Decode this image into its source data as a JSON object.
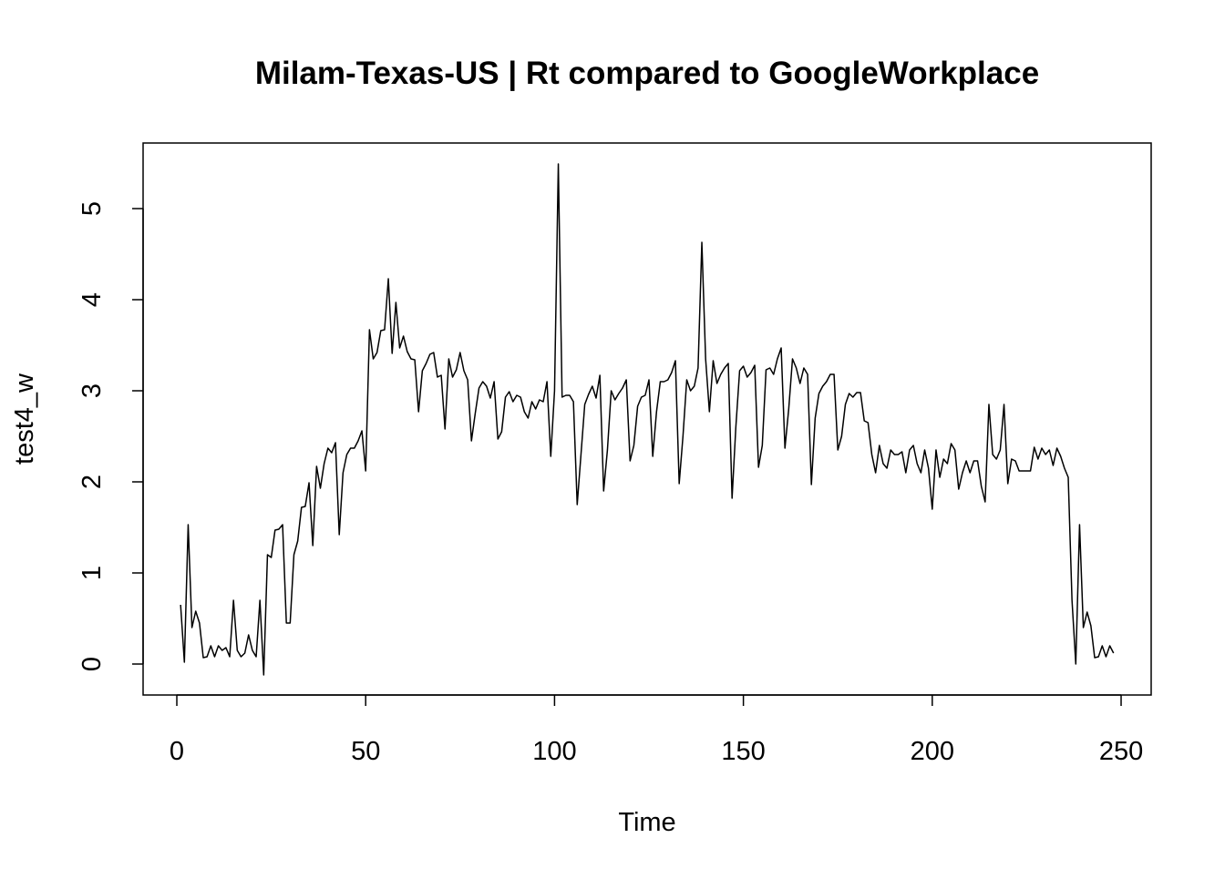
{
  "chart_data": {
    "type": "line",
    "title": "Milam-Texas-US | Rt compared to GoogleWorkplace",
    "x_label": "Time",
    "y_label": "test4_w",
    "x": [
      1,
      2,
      3,
      4,
      5,
      6,
      7,
      8,
      9,
      10,
      11,
      12,
      13,
      14,
      15,
      16,
      17,
      18,
      19,
      20,
      21,
      22,
      23,
      24,
      25,
      26,
      27,
      28,
      29,
      30,
      31,
      32,
      33,
      34,
      35,
      36,
      37,
      38,
      39,
      40,
      41,
      42,
      43,
      44,
      45,
      46,
      47,
      48,
      49,
      50,
      51,
      52,
      53,
      54,
      55,
      56,
      57,
      58,
      59,
      60,
      61,
      62,
      63,
      64,
      65,
      66,
      67,
      68,
      69,
      70,
      71,
      72,
      73,
      74,
      75,
      76,
      77,
      78,
      79,
      80,
      81,
      82,
      83,
      84,
      85,
      86,
      87,
      88,
      89,
      90,
      91,
      92,
      93,
      94,
      95,
      96,
      97,
      98,
      99,
      100,
      101,
      102,
      103,
      104,
      105,
      106,
      107,
      108,
      109,
      110,
      111,
      112,
      113,
      114,
      115,
      116,
      117,
      118,
      119,
      120,
      121,
      122,
      123,
      124,
      125,
      126,
      127,
      128,
      129,
      130,
      131,
      132,
      133,
      134,
      135,
      136,
      137,
      138,
      139,
      140,
      141,
      142,
      143,
      144,
      145,
      146,
      147,
      148,
      149,
      150,
      151,
      152,
      153,
      154,
      155,
      156,
      157,
      158,
      159,
      160,
      161,
      162,
      163,
      164,
      165,
      166,
      167,
      168,
      169,
      170,
      171,
      172,
      173,
      174,
      175,
      176,
      177,
      178,
      179,
      180,
      181,
      182,
      183,
      184,
      185,
      186,
      187,
      188,
      189,
      190,
      191,
      192,
      193,
      194,
      195,
      196,
      197,
      198,
      199,
      200,
      201,
      202,
      203,
      204,
      205,
      206,
      207,
      208,
      209,
      210,
      211,
      212,
      213,
      214,
      215,
      216,
      217,
      218,
      219,
      220,
      221,
      222,
      223,
      224,
      225,
      226,
      227,
      228,
      229,
      230,
      231,
      232,
      233,
      234,
      235,
      236,
      237,
      238,
      239,
      240,
      241,
      242,
      243,
      244,
      245,
      246,
      247,
      248
    ],
    "series": [
      {
        "color": "#000000",
        "values": [
          0.65,
          0.02,
          1.53,
          0.4,
          0.58,
          0.45,
          0.07,
          0.08,
          0.2,
          0.08,
          0.2,
          0.15,
          0.18,
          0.08,
          0.7,
          0.15,
          0.08,
          0.12,
          0.32,
          0.15,
          0.08,
          0.7,
          -0.12,
          1.2,
          1.17,
          1.47,
          1.48,
          1.53,
          0.45,
          0.45,
          1.2,
          1.35,
          1.72,
          1.73,
          1.99,
          1.3,
          2.17,
          1.93,
          2.2,
          2.37,
          2.32,
          2.43,
          1.42,
          2.1,
          2.3,
          2.37,
          2.37,
          2.45,
          2.56,
          2.12,
          3.67,
          3.35,
          3.42,
          3.66,
          3.67,
          4.23,
          3.41,
          3.97,
          3.47,
          3.6,
          3.43,
          3.35,
          3.34,
          2.77,
          3.22,
          3.3,
          3.4,
          3.42,
          3.15,
          3.17,
          2.58,
          3.35,
          3.15,
          3.23,
          3.42,
          3.22,
          3.12,
          2.45,
          2.75,
          3.03,
          3.1,
          3.05,
          2.92,
          3.1,
          2.47,
          2.55,
          2.93,
          2.99,
          2.88,
          2.95,
          2.93,
          2.77,
          2.7,
          2.88,
          2.8,
          2.9,
          2.88,
          3.1,
          2.28,
          3.0,
          5.49,
          2.93,
          2.95,
          2.95,
          2.88,
          1.75,
          2.3,
          2.85,
          2.96,
          3.05,
          2.92,
          3.17,
          1.9,
          2.35,
          3.0,
          2.9,
          2.97,
          3.03,
          3.12,
          2.23,
          2.4,
          2.83,
          2.93,
          2.95,
          3.12,
          2.28,
          2.77,
          3.1,
          3.1,
          3.12,
          3.2,
          3.33,
          1.98,
          2.5,
          3.12,
          3.0,
          3.05,
          3.25,
          4.63,
          3.35,
          2.77,
          3.33,
          3.08,
          3.18,
          3.25,
          3.3,
          1.82,
          2.6,
          3.22,
          3.27,
          3.15,
          3.2,
          3.28,
          2.16,
          2.4,
          3.23,
          3.25,
          3.18,
          3.35,
          3.47,
          2.37,
          2.8,
          3.35,
          3.25,
          3.08,
          3.25,
          3.18,
          1.97,
          2.7,
          2.97,
          3.05,
          3.1,
          3.18,
          3.18,
          2.35,
          2.5,
          2.85,
          2.97,
          2.93,
          2.98,
          2.98,
          2.67,
          2.65,
          2.3,
          2.1,
          2.4,
          2.2,
          2.15,
          2.35,
          2.3,
          2.3,
          2.33,
          2.1,
          2.35,
          2.4,
          2.2,
          2.1,
          2.35,
          2.15,
          1.7,
          2.35,
          2.05,
          2.25,
          2.2,
          2.42,
          2.35,
          1.92,
          2.1,
          2.23,
          2.1,
          2.23,
          2.23,
          1.95,
          1.78,
          2.85,
          2.3,
          2.25,
          2.35,
          2.85,
          1.98,
          2.25,
          2.23,
          2.12,
          2.12,
          2.12,
          2.12,
          2.38,
          2.25,
          2.37,
          2.3,
          2.35,
          2.18,
          2.37,
          2.28,
          2.15,
          2.05,
          0.7,
          0.0,
          1.53,
          0.4,
          0.57,
          0.42,
          0.07,
          0.08,
          0.2,
          0.08,
          0.2,
          0.12
        ]
      }
    ],
    "xlim": [
      -8.93,
      257.96
    ],
    "ylim": [
      -0.34,
      5.72
    ],
    "xticks": [
      0,
      50,
      100,
      150,
      200,
      250
    ],
    "yticks": [
      0,
      1,
      2,
      3,
      4,
      5
    ]
  }
}
